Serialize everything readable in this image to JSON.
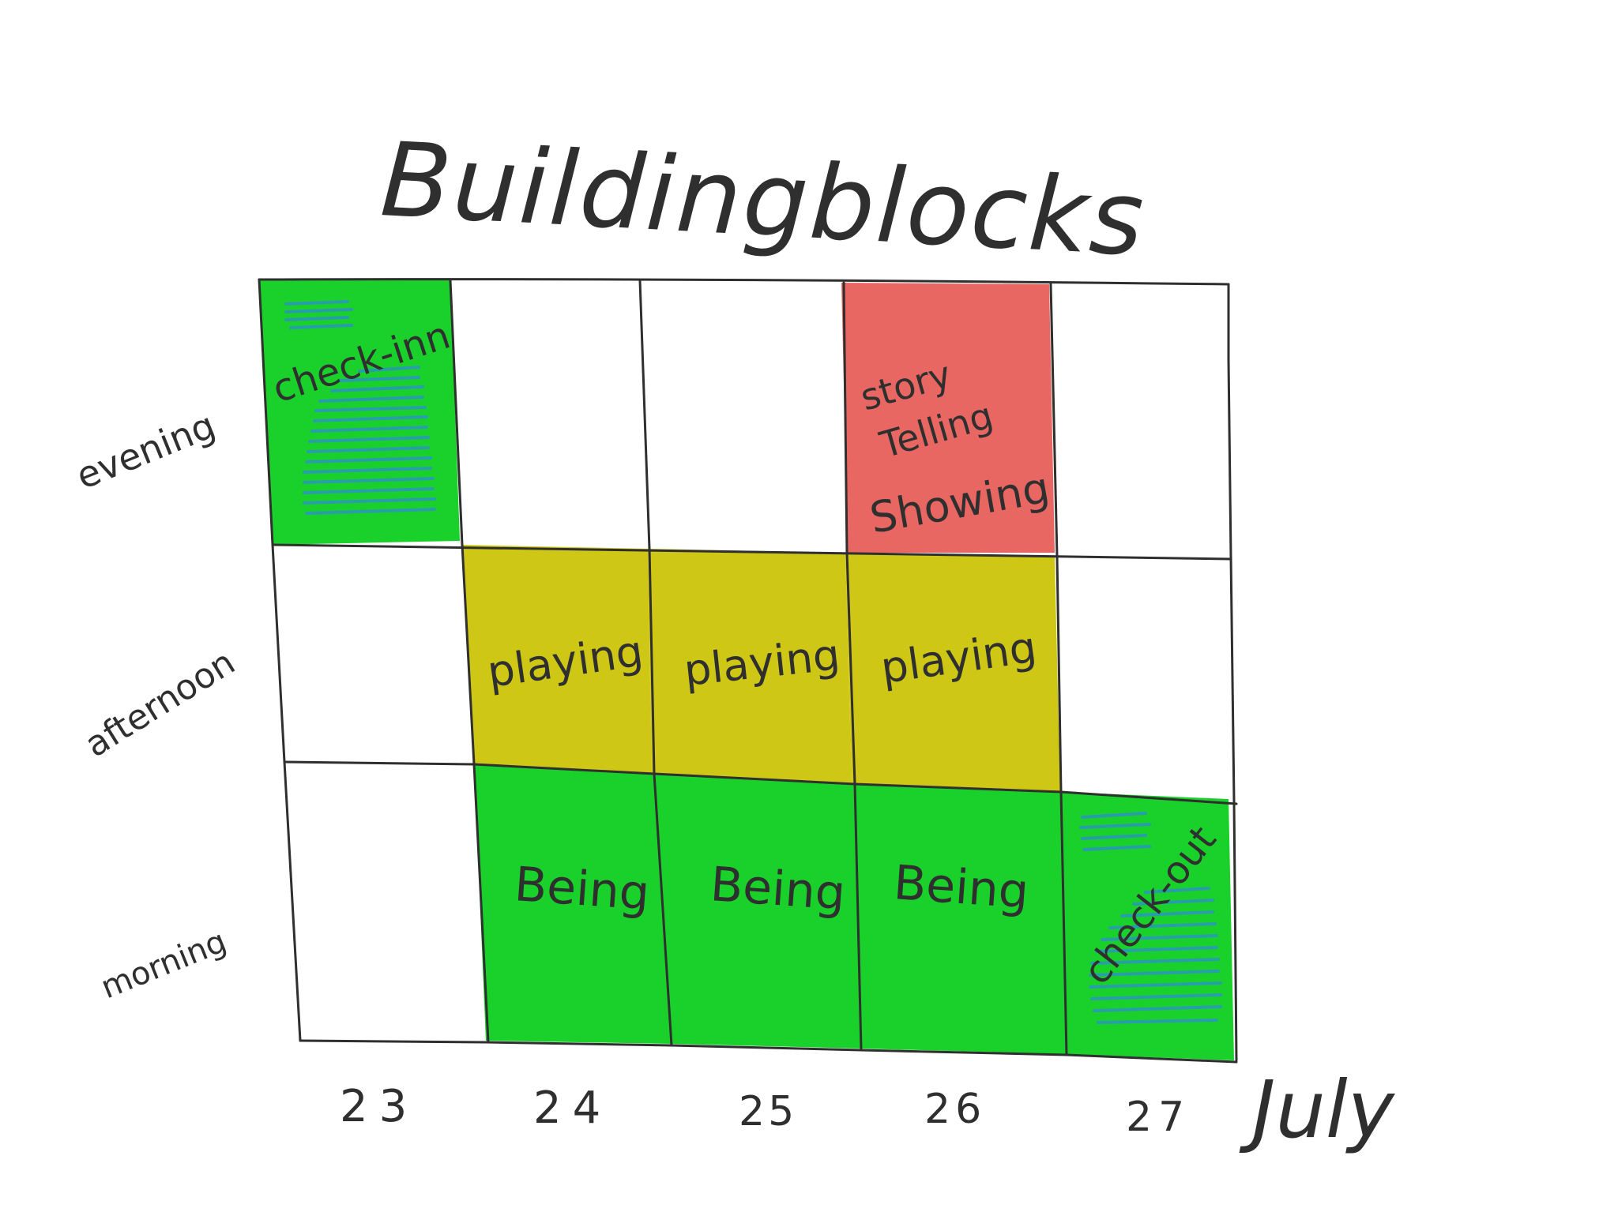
{
  "title": "Buildingblocks",
  "month": "July",
  "days": [
    "23",
    "24",
    "25",
    "26",
    "27"
  ],
  "slots": [
    "evening",
    "afternoon",
    "morning"
  ],
  "colors": {
    "green": "#19d12a",
    "yellow": "#cec716",
    "red": "#e96762",
    "scribble": "#2a98b8",
    "ink": "#2f2f2f"
  },
  "cells": {
    "evening": [
      {
        "text": "check-inn",
        "color": "green",
        "scribble": true
      },
      null,
      null,
      {
        "lines": [
          "story",
          "Telling",
          "Showing"
        ],
        "color": "red"
      },
      null
    ],
    "afternoon": [
      null,
      {
        "text": "playing",
        "color": "yellow"
      },
      {
        "text": "playing",
        "color": "yellow"
      },
      {
        "text": "playing",
        "color": "yellow"
      },
      null
    ],
    "morning": [
      null,
      {
        "text": "Being",
        "color": "green"
      },
      {
        "text": "Being",
        "color": "green"
      },
      {
        "text": "Being",
        "color": "green"
      },
      {
        "text": "check-out",
        "color": "green",
        "scribble": true
      }
    ]
  }
}
